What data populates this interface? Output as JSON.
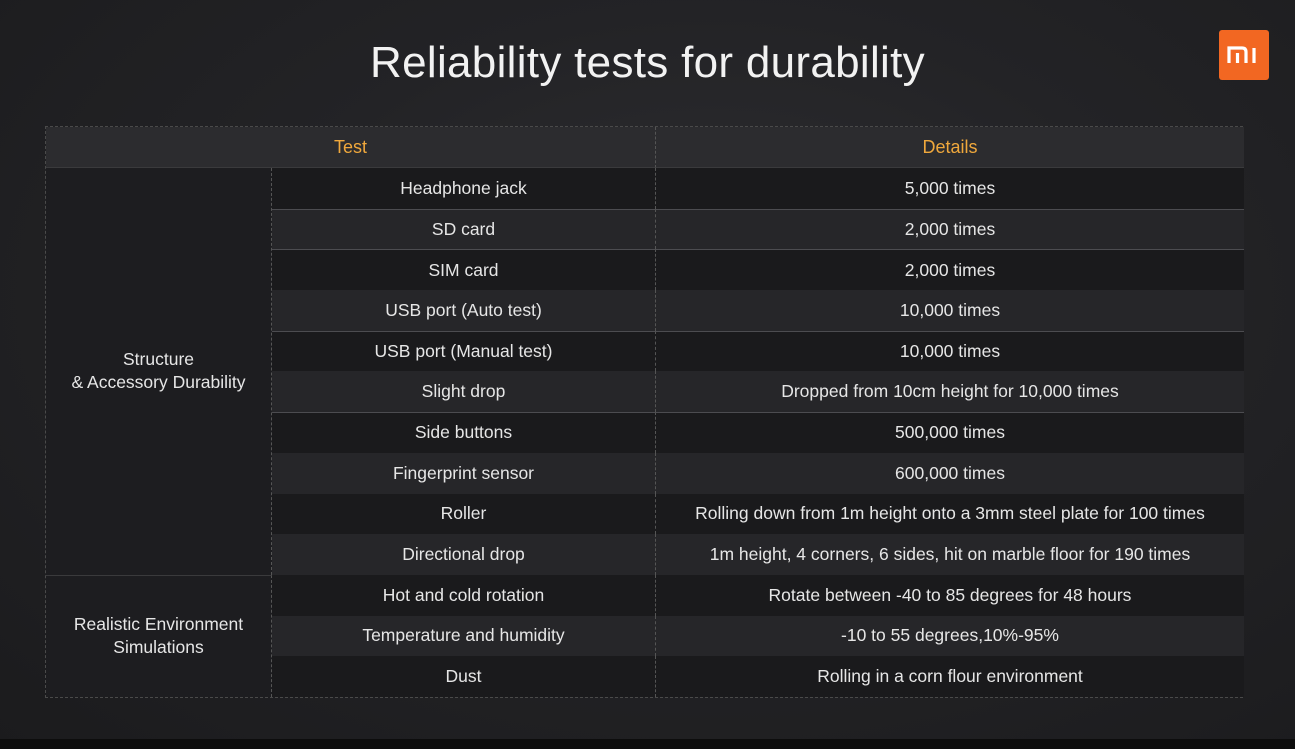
{
  "title": "Reliability tests for durability",
  "logo": {
    "text": "mi",
    "color": "#f26722"
  },
  "table": {
    "headers": {
      "test": "Test",
      "details": "Details"
    },
    "categories": [
      {
        "line1": "Structure",
        "line2": "& Accessory Durability"
      },
      {
        "line1": "Realistic Environment",
        "line2": "Simulations"
      }
    ],
    "rows": [
      {
        "test": "Headphone jack",
        "details": "5,000 times"
      },
      {
        "test": "SD card",
        "details": "2,000 times"
      },
      {
        "test": "SIM card",
        "details": "2,000 times"
      },
      {
        "test": "USB port (Auto test)",
        "details": "10,000 times"
      },
      {
        "test": "USB port (Manual test)",
        "details": "10,000 times"
      },
      {
        "test": "Slight drop",
        "details": "Dropped from 10cm height for 10,000 times"
      },
      {
        "test": "Side buttons",
        "details": "500,000 times"
      },
      {
        "test": "Fingerprint sensor",
        "details": "600,000 times"
      },
      {
        "test": "Roller",
        "details": "Rolling down from 1m height onto a 3mm steel plate for 100 times"
      },
      {
        "test": "Directional drop",
        "details": "1m height, 4 corners, 6 sides, hit on marble floor for 190 times"
      },
      {
        "test": "Hot and cold rotation",
        "details": "Rotate between -40 to 85 degrees for 48 hours"
      },
      {
        "test": "Temperature and humidity",
        "details": "-10 to 55 degrees,10%-95%"
      },
      {
        "test": "Dust",
        "details": "Rolling in a corn flour environment"
      }
    ]
  }
}
